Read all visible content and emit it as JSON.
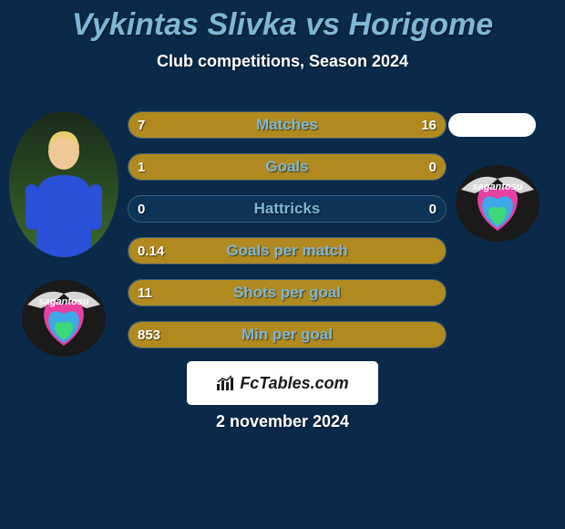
{
  "background_color": "#0b2a4a",
  "title": {
    "text": "Vykintas Slivka vs Horigome",
    "color": "#7fb7d6",
    "fontsize": 34
  },
  "subtitle": {
    "text": "Club competitions, Season 2024",
    "color": "#ffffff",
    "fontsize": 18
  },
  "stats": {
    "bar_bg_color": "#0d3356",
    "bar_border_color": "#385f7e",
    "fill_left_color": "#b08a1f",
    "fill_right_color": "#b08a1f",
    "label_color": "#7fb7d6",
    "value_color": "#ffffff",
    "label_fontsize": 17,
    "value_fontsize": 15,
    "rows": [
      {
        "label": "Matches",
        "left": "7",
        "right": "16",
        "left_pct": 30,
        "right_pct": 70
      },
      {
        "label": "Goals",
        "left": "1",
        "right": "0",
        "left_pct": 100,
        "right_pct": 0
      },
      {
        "label": "Hattricks",
        "left": "0",
        "right": "0",
        "left_pct": 0,
        "right_pct": 0
      },
      {
        "label": "Goals per match",
        "left": "0.14",
        "right": "",
        "left_pct": 100,
        "right_pct": 0
      },
      {
        "label": "Shots per goal",
        "left": "11",
        "right": "",
        "left_pct": 100,
        "right_pct": 0
      },
      {
        "label": "Min per goal",
        "left": "853",
        "right": "",
        "left_pct": 100,
        "right_pct": 0
      }
    ],
    "extra_empty_rows": 1
  },
  "player_left": {
    "photo_bg_top": "#1a2a1a",
    "photo_bg_bottom": "#3a6a2a",
    "jersey_color": "#2a4fd8",
    "skin_color": "#f0c898",
    "hair_color": "#e8d070"
  },
  "team_logo": {
    "ring_color": "#1a1a1a",
    "wing_color": "#d8d8d8",
    "heart_top": "#e83fa0",
    "heart_mid": "#3fa8e8",
    "heart_bot": "#3fd878",
    "text": "sagantosu",
    "text_color": "#ffffff"
  },
  "blank_right_color": "#ffffff",
  "watermark": {
    "bg": "#ffffff",
    "text": "FcTables.com",
    "text_color": "#1a1a1a",
    "fontsize": 18
  },
  "date": {
    "text": "2 november 2024",
    "color": "#ffffff",
    "fontsize": 18
  }
}
